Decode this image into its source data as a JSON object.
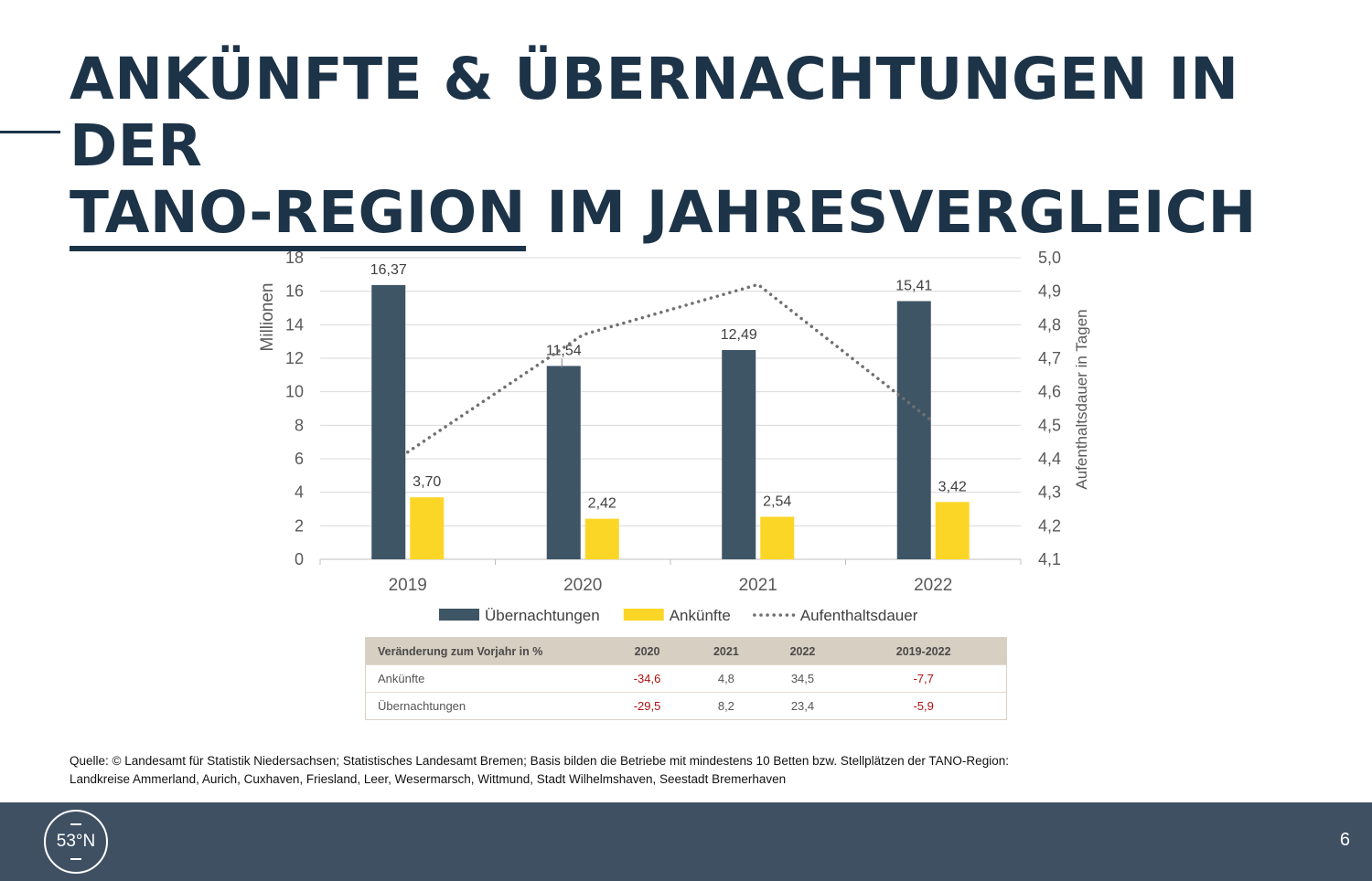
{
  "title": {
    "line1": "ANKÜNFTE & ÜBERNACHTUNGEN IN DER",
    "line2_underlined": "TANO-REGION",
    "line2_rest": " IM JAHRESVERGLEICH"
  },
  "chart_data": {
    "type": "bar",
    "categories": [
      "2019",
      "2020",
      "2021",
      "2022"
    ],
    "series": [
      {
        "name": "Übernachtungen",
        "values": [
          16.37,
          11.54,
          12.49,
          15.41
        ],
        "labels": [
          "16,37",
          "11,54",
          "12,49",
          "15,41"
        ],
        "color": "#3e5566",
        "axis": "left",
        "kind": "bar"
      },
      {
        "name": "Ankünfte",
        "values": [
          3.7,
          2.42,
          2.54,
          3.42
        ],
        "labels": [
          "3,70",
          "2,42",
          "2,54",
          "3,42"
        ],
        "color": "#fcd627",
        "axis": "left",
        "kind": "bar"
      },
      {
        "name": "Aufenthaltsdauer",
        "values": [
          4.42,
          4.77,
          4.92,
          4.51
        ],
        "color": "#707070",
        "axis": "right",
        "kind": "dotted-line"
      }
    ],
    "ylabel": "Millionen",
    "ylim": [
      0,
      18
    ],
    "yticks": [
      0,
      2,
      4,
      6,
      8,
      10,
      12,
      14,
      16,
      18
    ],
    "ylabel_right": "Aufenthaltsdauer in Tagen",
    "ylim_right": [
      4.1,
      5.0
    ],
    "yticks_right": [
      "4,1",
      "4,2",
      "4,3",
      "4,4",
      "4,5",
      "4,6",
      "4,7",
      "4,8",
      "4,9",
      "5,0"
    ],
    "grid": true,
    "legend": "bottom"
  },
  "table": {
    "headers": [
      "Veränderung zum Vorjahr in %",
      "2020",
      "2021",
      "2022",
      "2019-2022"
    ],
    "rows": [
      [
        "Ankünfte",
        "-34,6",
        "4,8",
        "34,5",
        "-7,7"
      ],
      [
        "Übernachtungen",
        "-29,5",
        "8,2",
        "23,4",
        "-5,9"
      ]
    ],
    "negative_color": "#b01010"
  },
  "source": {
    "line1": "Quelle: © Landesamt für Statistik Niedersachsen; Statistisches Landesamt Bremen; Basis bilden die Betriebe mit mindestens 10 Betten bzw. Stellplätzen der TANO-Region:",
    "line2": "Landkreise Ammerland, Aurich, Cuxhaven, Friesland, Leer, Wesermarsch, Wittmund, Stadt Wilhelmshaven, Seestadt Bremerhaven"
  },
  "footer": {
    "logo_text": "53°N",
    "page_number": "6"
  }
}
